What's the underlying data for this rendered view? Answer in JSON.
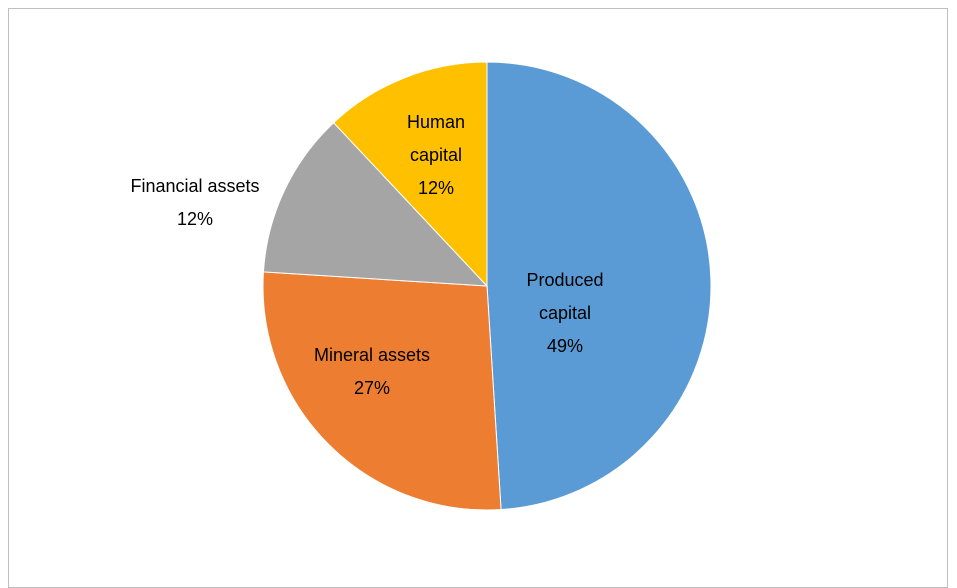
{
  "chart_data": {
    "type": "pie",
    "categories": [
      "Produced capital",
      "Mineral assets",
      "Financial assets",
      "Human capital"
    ],
    "values": [
      49,
      27,
      12,
      12
    ],
    "value_labels": [
      "49%",
      "27%",
      "12%",
      "12%"
    ],
    "colors": [
      "#5b9bd5",
      "#ed7d31",
      "#a5a5a5",
      "#ffc000"
    ]
  }
}
